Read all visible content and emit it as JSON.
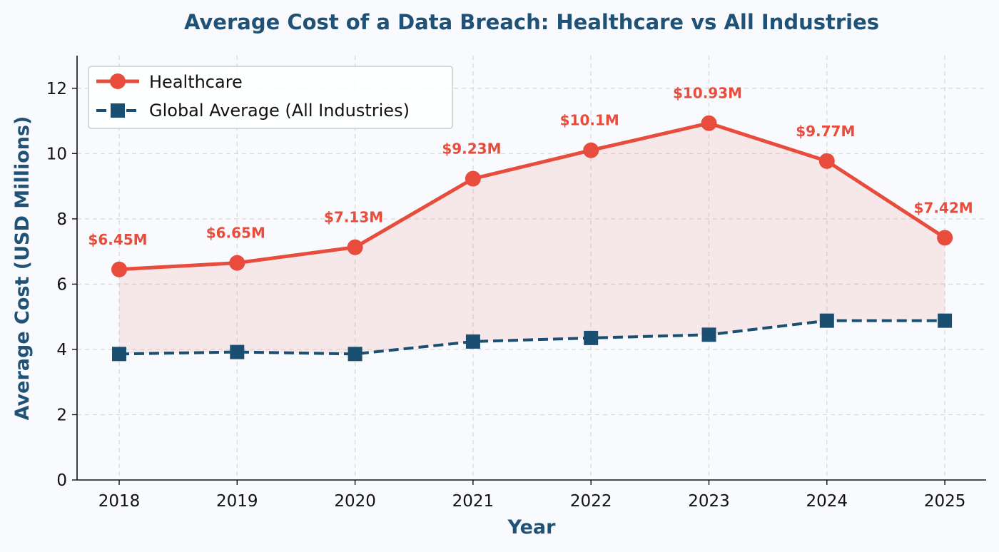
{
  "chart_data": {
    "type": "line",
    "title": "Average Cost of a Data Breach: Healthcare vs All Industries",
    "xlabel": "Year",
    "ylabel": "Average Cost (USD Millions)",
    "categories": [
      "2018",
      "2019",
      "2020",
      "2021",
      "2022",
      "2023",
      "2024",
      "2025"
    ],
    "ylim": [
      0,
      13
    ],
    "yticks": [
      0,
      2,
      4,
      6,
      8,
      10,
      12
    ],
    "grid": true,
    "legend_position": "top-left",
    "series": [
      {
        "name": "Healthcare",
        "values": [
          6.45,
          6.65,
          7.13,
          9.23,
          10.1,
          10.93,
          9.77,
          7.42
        ],
        "data_labels": [
          "$6.45M",
          "$6.65M",
          "$7.13M",
          "$9.23M",
          "$10.1M",
          "$10.93M",
          "$9.77M",
          "$7.42M"
        ],
        "color": "#e74c3c",
        "line_style": "solid",
        "marker": "circle"
      },
      {
        "name": "Global Average (All Industries)",
        "values": [
          3.86,
          3.92,
          3.86,
          4.24,
          4.35,
          4.45,
          4.88,
          4.88
        ],
        "color": "#1b4f72",
        "line_style": "dashed",
        "marker": "square"
      }
    ],
    "fill_between": {
      "color": "#e74c3c",
      "opacity": 0.1
    }
  }
}
